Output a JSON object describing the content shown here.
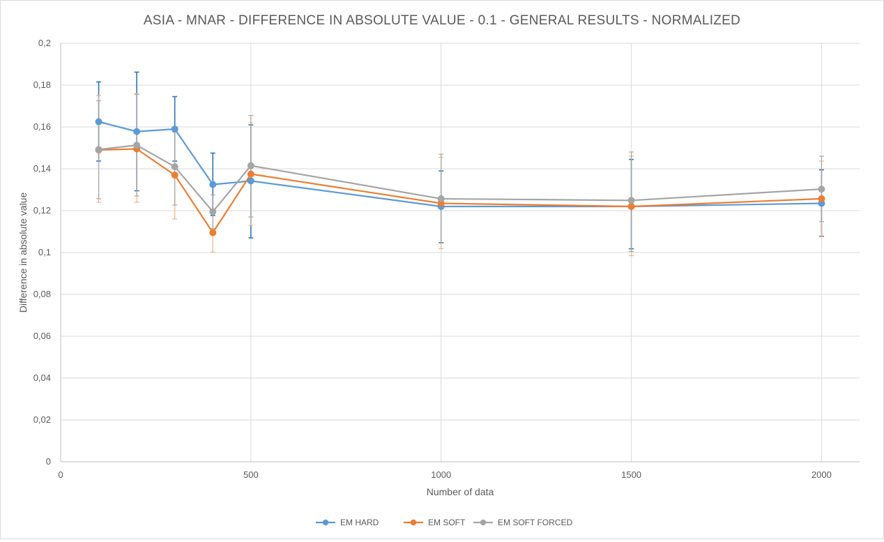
{
  "chart_data": {
    "type": "scatter",
    "title": "ASIA - MNAR - DIFFERENCE IN ABSOLUTE VALUE - 0.1 - GENERAL RESULTS - NORMALIZED",
    "xlabel": "Number of data",
    "ylabel": "Difference in absolute value",
    "xlim": [
      0,
      2100
    ],
    "ylim": [
      0,
      0.2
    ],
    "x_ticks": [
      0,
      500,
      1000,
      1500,
      2000
    ],
    "x_tick_labels": [
      "0",
      "500",
      "1000",
      "1500",
      "2000"
    ],
    "y_ticks": [
      0,
      0.02,
      0.04,
      0.06,
      0.08,
      0.1,
      0.12,
      0.14,
      0.16,
      0.18,
      0.2
    ],
    "y_tick_labels": [
      "0",
      "0,02",
      "0,04",
      "0,06",
      "0,08",
      "0,1",
      "0,12",
      "0,14",
      "0,16",
      "0,18",
      "0,2"
    ],
    "grid": "vertical and horizontal",
    "legend_position": "bottom",
    "series": [
      {
        "name": "EM HARD",
        "color": "#5b9bd5",
        "error_color": "#2e75b6",
        "x": [
          100,
          200,
          300,
          400,
          500,
          1000,
          1500,
          2000
        ],
        "y": [
          0.1625,
          0.1578,
          0.159,
          0.1325,
          0.1342,
          0.122,
          0.122,
          0.1235
        ],
        "err_upper": [
          0.1815,
          0.1862,
          0.1745,
          0.1475,
          0.161,
          0.139,
          0.1445,
          0.1395
        ],
        "err_lower": [
          0.1437,
          0.1295,
          0.1437,
          0.1177,
          0.107,
          0.1047,
          0.1018,
          0.1077
        ]
      },
      {
        "name": "EM SOFT",
        "color": "#ed7d31",
        "error_color": "#f4b183",
        "x": [
          100,
          200,
          300,
          400,
          500,
          1000,
          1500,
          2000
        ],
        "y": [
          0.149,
          0.1495,
          0.137,
          0.1095,
          0.1375,
          0.1235,
          0.122,
          0.1257
        ],
        "err_upper": [
          0.175,
          0.176,
          0.1575,
          0.12,
          0.162,
          0.1455,
          0.146,
          0.1437
        ],
        "err_lower": [
          0.124,
          0.124,
          0.116,
          0.1002,
          0.113,
          0.1018,
          0.0985,
          0.1075
        ]
      },
      {
        "name": "EM SOFT FORCED",
        "color": "#a5a5a5",
        "error_color": "#a5a5a5",
        "x": [
          100,
          200,
          300,
          400,
          500,
          1000,
          1500,
          2000
        ],
        "y": [
          0.1492,
          0.1513,
          0.141,
          0.1195,
          0.1415,
          0.1257,
          0.1249,
          0.1303
        ],
        "err_upper": [
          0.1725,
          0.1755,
          0.1585,
          0.1275,
          0.1655,
          0.147,
          0.148,
          0.146
        ],
        "err_lower": [
          0.1257,
          0.127,
          0.1227,
          0.1115,
          0.117,
          0.1045,
          0.1005,
          0.1148
        ]
      }
    ]
  }
}
